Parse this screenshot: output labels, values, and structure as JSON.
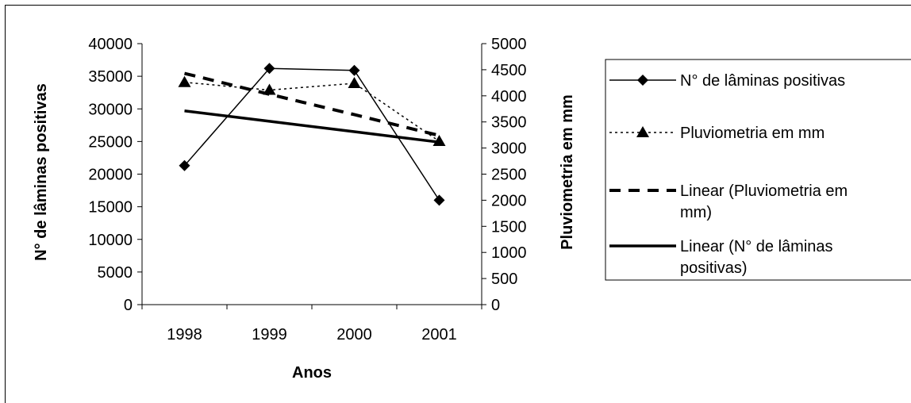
{
  "chart_data": {
    "type": "line",
    "categories": [
      "1998",
      "1999",
      "2000",
      "2001"
    ],
    "xlabel": "Anos",
    "ylabel_left": "N° de lâminas positivas",
    "ylabel_right": "Pluviometria em mm",
    "ylim_left": [
      0,
      40000
    ],
    "ylim_right": [
      0,
      5000
    ],
    "yticks_left": [
      "40000",
      "35000",
      "30000",
      "25000",
      "20000",
      "15000",
      "10000",
      "5000",
      "0"
    ],
    "yticks_right": [
      "5000",
      "4500",
      "4000",
      "3500",
      "3000",
      "2500",
      "2000",
      "1500",
      "1000",
      "500",
      "0"
    ],
    "grid": false,
    "legend_position": "right",
    "series": [
      {
        "name": "N° de lâminas positivas",
        "axis": "left",
        "values": [
          21300,
          36200,
          35900,
          16000
        ],
        "style": "solid-diamond",
        "color": "#000000"
      },
      {
        "name": "Pluviometria em mm",
        "axis": "right",
        "values": [
          4260,
          4110,
          4240,
          3130
        ],
        "style": "dotted-triangle",
        "color": "#000000"
      },
      {
        "name": "Linear (Pluviometria em mm)",
        "axis": "right",
        "values": [
          4430,
          4030,
          3640,
          3240
        ],
        "style": "thick-dashed",
        "color": "#000000"
      },
      {
        "name": "Linear (N° de lâminas positivas)",
        "axis": "left",
        "values": [
          29700,
          28100,
          26500,
          24900
        ],
        "style": "thick-solid",
        "color": "#000000"
      }
    ],
    "legend": {
      "entries": [
        [
          "N° de lâminas positivas"
        ],
        [
          "Pluviometria em mm"
        ],
        [
          "Linear (Pluviometria em",
          "mm)"
        ],
        [
          "Linear (N° de lâminas",
          "positivas)"
        ]
      ]
    }
  }
}
